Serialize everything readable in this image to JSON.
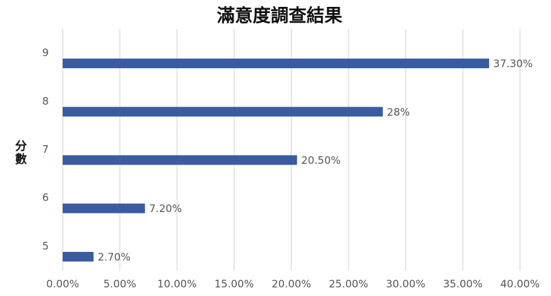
{
  "chart_data": {
    "type": "barh",
    "title": "滿意度調查結果",
    "y_label": "分數",
    "categories": [
      "5",
      "6",
      "7",
      "8",
      "9"
    ],
    "values": [
      2.7,
      7.2,
      20.5,
      28,
      37.3
    ],
    "value_labels": [
      "2.70%",
      "7.20%",
      "20.50%",
      "28%",
      "37.30%"
    ],
    "color": "#3a5ba0",
    "xlim": [
      0,
      40
    ],
    "xticks": [
      {
        "value": 0,
        "label": "0.00%"
      },
      {
        "value": 5,
        "label": "5.00%"
      },
      {
        "value": 10,
        "label": "10.00%"
      },
      {
        "value": 15,
        "label": "15.00%"
      },
      {
        "value": 20,
        "label": "20.00%"
      },
      {
        "value": 25,
        "label": "25.00%"
      },
      {
        "value": 30,
        "label": "30.00%"
      },
      {
        "value": 35,
        "label": "35.00%"
      },
      {
        "value": 40,
        "label": "40.00%"
      }
    ],
    "grid": true
  }
}
